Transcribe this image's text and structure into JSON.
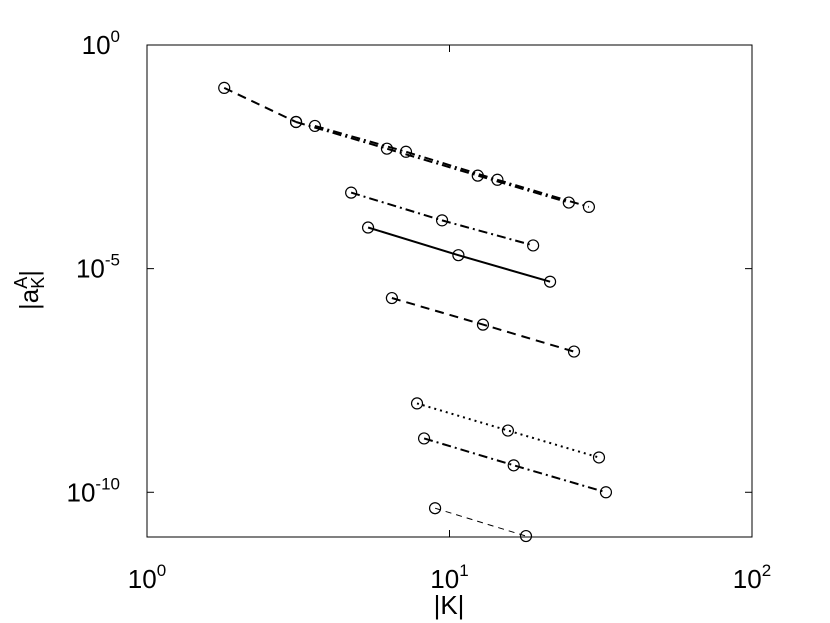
{
  "chart_data": {
    "type": "line",
    "x_label": "|K|",
    "y_label": "|a_K^A|",
    "x_scale": "log",
    "y_scale": "log",
    "xlim": [
      1,
      100
    ],
    "ylim": [
      1e-11,
      1
    ],
    "xticks": [
      {
        "value": 1,
        "label": "10^0"
      },
      {
        "value": 10,
        "label": "10^1"
      },
      {
        "value": 100,
        "label": "10^2"
      }
    ],
    "yticks": [
      {
        "value": 1,
        "label": "10^0"
      },
      {
        "value": 1e-05,
        "label": "10^-5"
      },
      {
        "value": 1e-10,
        "label": "10^-10"
      }
    ],
    "marker": "circle",
    "series": [
      {
        "color": "#000000",
        "dash": "dashed",
        "x": [
          1.8,
          3.11
        ],
        "values": [
          0.11,
          0.019
        ]
      },
      {
        "color": "#000000",
        "dash": "dashdot",
        "x": [
          3.11,
          6.21,
          12.4,
          24.8
        ],
        "values": [
          0.019,
          0.0048,
          0.0012,
          0.0003
        ]
      },
      {
        "color": "#000000",
        "dash": "dashdot",
        "x": [
          3.59,
          7.18,
          14.4,
          28.9
        ],
        "values": [
          0.0155,
          0.0041,
          0.00097,
          0.00024
        ]
      },
      {
        "color": "#000000",
        "dash": "dashdot",
        "x": [
          4.73,
          9.45,
          18.9
        ],
        "values": [
          0.0005,
          0.00012,
          3.3e-05
        ]
      },
      {
        "color": "#000000",
        "dash": "solid",
        "x": [
          5.38,
          10.7,
          21.5
        ],
        "values": [
          8.3e-05,
          2e-05,
          5.1e-06
        ]
      },
      {
        "color": "#000000",
        "dash": "dashed",
        "x": [
          6.45,
          12.9,
          25.8
        ],
        "values": [
          2.2e-06,
          5.6e-07,
          1.4e-07
        ]
      },
      {
        "color": "#000000",
        "dash": "dotted",
        "x": [
          7.81,
          15.6,
          31.2
        ],
        "values": [
          9.7e-09,
          2.4e-09,
          6e-10
        ]
      },
      {
        "color": "#000000",
        "dash": "dashdot",
        "x": [
          8.24,
          16.3,
          32.9
        ],
        "values": [
          1.6e-09,
          4e-10,
          1e-10
        ]
      },
      {
        "color": "#000000",
        "dash": "thindashed",
        "x": [
          8.96,
          17.9
        ],
        "values": [
          4.4e-11,
          1.05e-11
        ]
      }
    ]
  }
}
